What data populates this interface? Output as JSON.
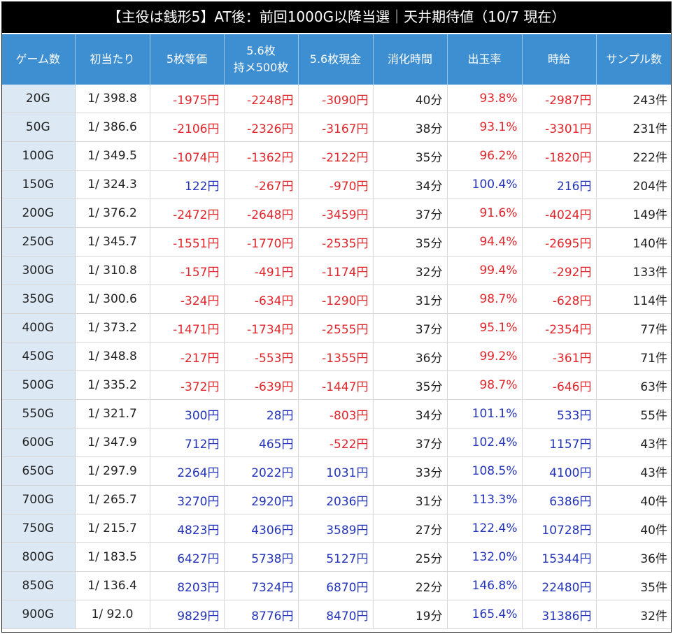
{
  "title": "【主役は銭形5】AT後：前回1000G以降当選｜天井期待値（10/7 現在）",
  "colors": {
    "negative": "#e0262b",
    "positive": "#2334b8",
    "header_bg": "#3d8fd1",
    "gamecol_bg": "#dce9f5",
    "title_bg": "#000000"
  },
  "headers": [
    {
      "l1": "ゲーム数",
      "l2": ""
    },
    {
      "l1": "初当たり",
      "l2": ""
    },
    {
      "l1": "5枚等価",
      "l2": ""
    },
    {
      "l1": "5.6枚",
      "l2": "持メ500枚"
    },
    {
      "l1": "5.6枚現金",
      "l2": ""
    },
    {
      "l1": "消化時間",
      "l2": ""
    },
    {
      "l1": "出玉率",
      "l2": ""
    },
    {
      "l1": "時給",
      "l2": ""
    },
    {
      "l1": "サンプル数",
      "l2": ""
    }
  ],
  "rows": [
    [
      "20G",
      "1/ 398.8",
      "-1975円",
      "-2248円",
      "-3090円",
      "40分",
      "93.8%",
      "-2987円",
      "243件"
    ],
    [
      "50G",
      "1/ 386.6",
      "-2106円",
      "-2326円",
      "-3167円",
      "38分",
      "93.1%",
      "-3301円",
      "231件"
    ],
    [
      "100G",
      "1/ 349.5",
      "-1074円",
      "-1362円",
      "-2122円",
      "35分",
      "96.2%",
      "-1820円",
      "222件"
    ],
    [
      "150G",
      "1/ 324.3",
      "122円",
      "-267円",
      "-970円",
      "34分",
      "100.4%",
      "216円",
      "204件"
    ],
    [
      "200G",
      "1/ 376.2",
      "-2472円",
      "-2648円",
      "-3459円",
      "37分",
      "91.6%",
      "-4024円",
      "149件"
    ],
    [
      "250G",
      "1/ 345.7",
      "-1551円",
      "-1770円",
      "-2535円",
      "35分",
      "94.4%",
      "-2695円",
      "140件"
    ],
    [
      "300G",
      "1/ 310.8",
      "-157円",
      "-491円",
      "-1174円",
      "32分",
      "99.4%",
      "-292円",
      "133件"
    ],
    [
      "350G",
      "1/ 300.6",
      "-324円",
      "-634円",
      "-1290円",
      "31分",
      "98.7%",
      "-628円",
      "114件"
    ],
    [
      "400G",
      "1/ 373.2",
      "-1471円",
      "-1734円",
      "-2555円",
      "37分",
      "95.1%",
      "-2354円",
      "77件"
    ],
    [
      "450G",
      "1/ 348.8",
      "-217円",
      "-553円",
      "-1355円",
      "36分",
      "99.2%",
      "-361円",
      "71件"
    ],
    [
      "500G",
      "1/ 335.2",
      "-372円",
      "-639円",
      "-1447円",
      "35分",
      "98.7%",
      "-646円",
      "63件"
    ],
    [
      "550G",
      "1/ 321.7",
      "300円",
      "28円",
      "-803円",
      "34分",
      "101.1%",
      "533円",
      "55件"
    ],
    [
      "600G",
      "1/ 347.9",
      "712円",
      "465円",
      "-522円",
      "37分",
      "102.4%",
      "1157円",
      "43件"
    ],
    [
      "650G",
      "1/ 297.9",
      "2264円",
      "2022円",
      "1031円",
      "33分",
      "108.5%",
      "4100円",
      "43件"
    ],
    [
      "700G",
      "1/ 265.7",
      "3270円",
      "2920円",
      "2036円",
      "31分",
      "113.3%",
      "6386円",
      "40件"
    ],
    [
      "750G",
      "1/ 215.7",
      "4823円",
      "4306円",
      "3589円",
      "27分",
      "122.4%",
      "10728円",
      "40件"
    ],
    [
      "800G",
      "1/ 183.5",
      "6427円",
      "5738円",
      "5127円",
      "25分",
      "132.0%",
      "15344円",
      "36件"
    ],
    [
      "850G",
      "1/ 136.4",
      "8203円",
      "7324円",
      "6870円",
      "22分",
      "146.8%",
      "22480円",
      "35件"
    ],
    [
      "900G",
      "1/ 92.0",
      "9829円",
      "8776円",
      "8470円",
      "19分",
      "165.4%",
      "31386円",
      "32件"
    ]
  ]
}
